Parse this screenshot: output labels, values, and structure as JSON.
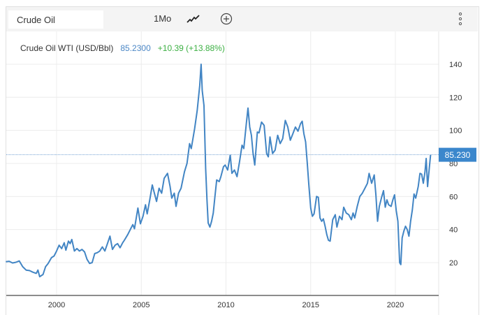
{
  "header": {
    "search_value": "Crude Oil",
    "period": "1Mo",
    "icons": [
      "line-chart-icon",
      "add-circle-icon",
      "more-vertical-icon"
    ]
  },
  "legend": {
    "name": "Crude Oil WTI (USD/Bbl)",
    "last": "85.2300",
    "change": "+10.39 (+13.88%)"
  },
  "colors": {
    "line": "#4285c4",
    "last_value": "#4a86c5",
    "change": "#3cb043",
    "badge": "#3b87cc"
  },
  "chart_data": {
    "type": "line",
    "title": "",
    "xlabel": "",
    "ylabel": "",
    "xlim": [
      1997.0,
      2022.6
    ],
    "ylim": [
      0,
      150
    ],
    "x_ticks": [
      "2000",
      "2005",
      "2010",
      "2015",
      "2020"
    ],
    "y_ticks": [
      "20",
      "40",
      "60",
      "80",
      "100",
      "120",
      "140"
    ],
    "grid": true,
    "last_value_label": "85.230",
    "last_value": 85.23,
    "series": [
      {
        "points": [
          [
            1997.0,
            20.5
          ],
          [
            1997.2,
            20.8
          ],
          [
            1997.4,
            19.8
          ],
          [
            1997.6,
            20.2
          ],
          [
            1997.8,
            21.0
          ],
          [
            1998.0,
            17.5
          ],
          [
            1998.2,
            15.5
          ],
          [
            1998.4,
            15.2
          ],
          [
            1998.6,
            14.2
          ],
          [
            1998.8,
            13.5
          ],
          [
            1998.9,
            15.5
          ],
          [
            1999.0,
            11.5
          ],
          [
            1999.2,
            12.8
          ],
          [
            1999.35,
            17.5
          ],
          [
            1999.5,
            19.5
          ],
          [
            1999.7,
            23.0
          ],
          [
            1999.85,
            24.0
          ],
          [
            2000.0,
            27.0
          ],
          [
            2000.15,
            30.5
          ],
          [
            2000.3,
            28.5
          ],
          [
            2000.45,
            32.0
          ],
          [
            2000.55,
            27.5
          ],
          [
            2000.7,
            33.0
          ],
          [
            2000.8,
            31.5
          ],
          [
            2000.9,
            34.0
          ],
          [
            2001.05,
            27.0
          ],
          [
            2001.2,
            28.5
          ],
          [
            2001.35,
            27.0
          ],
          [
            2001.5,
            28.0
          ],
          [
            2001.65,
            26.5
          ],
          [
            2001.8,
            22.0
          ],
          [
            2001.95,
            19.5
          ],
          [
            2002.1,
            20.0
          ],
          [
            2002.25,
            25.5
          ],
          [
            2002.4,
            26.0
          ],
          [
            2002.55,
            27.0
          ],
          [
            2002.7,
            29.5
          ],
          [
            2002.85,
            27.0
          ],
          [
            2003.0,
            31.5
          ],
          [
            2003.15,
            36.0
          ],
          [
            2003.3,
            28.0
          ],
          [
            2003.45,
            30.5
          ],
          [
            2003.6,
            31.5
          ],
          [
            2003.75,
            29.0
          ],
          [
            2003.9,
            32.0
          ],
          [
            2004.0,
            33.5
          ],
          [
            2004.2,
            37.0
          ],
          [
            2004.35,
            40.0
          ],
          [
            2004.5,
            43.0
          ],
          [
            2004.6,
            40.5
          ],
          [
            2004.8,
            53.0
          ],
          [
            2004.95,
            43.5
          ],
          [
            2005.1,
            48.0
          ],
          [
            2005.25,
            55.0
          ],
          [
            2005.35,
            49.5
          ],
          [
            2005.5,
            58.0
          ],
          [
            2005.65,
            67.0
          ],
          [
            2005.75,
            63.0
          ],
          [
            2005.9,
            57.0
          ],
          [
            2006.05,
            65.0
          ],
          [
            2006.2,
            62.0
          ],
          [
            2006.35,
            71.0
          ],
          [
            2006.55,
            74.0
          ],
          [
            2006.7,
            66.0
          ],
          [
            2006.8,
            59.0
          ],
          [
            2006.95,
            62.0
          ],
          [
            2007.05,
            54.0
          ],
          [
            2007.2,
            62.0
          ],
          [
            2007.35,
            65.0
          ],
          [
            2007.55,
            75.0
          ],
          [
            2007.7,
            80.0
          ],
          [
            2007.85,
            92.0
          ],
          [
            2007.95,
            89.0
          ],
          [
            2008.05,
            95.0
          ],
          [
            2008.15,
            101.0
          ],
          [
            2008.3,
            112.0
          ],
          [
            2008.45,
            127.0
          ],
          [
            2008.53,
            140.0
          ],
          [
            2008.6,
            124.0
          ],
          [
            2008.7,
            115.0
          ],
          [
            2008.8,
            77.0
          ],
          [
            2008.88,
            58.0
          ],
          [
            2008.95,
            44.0
          ],
          [
            2009.05,
            41.5
          ],
          [
            2009.15,
            45.0
          ],
          [
            2009.25,
            50.0
          ],
          [
            2009.35,
            60.0
          ],
          [
            2009.45,
            70.0
          ],
          [
            2009.6,
            69.0
          ],
          [
            2009.7,
            72.0
          ],
          [
            2009.85,
            78.0
          ],
          [
            2009.95,
            79.0
          ],
          [
            2010.1,
            76.0
          ],
          [
            2010.25,
            85.0
          ],
          [
            2010.35,
            74.0
          ],
          [
            2010.5,
            76.0
          ],
          [
            2010.65,
            72.0
          ],
          [
            2010.8,
            81.0
          ],
          [
            2010.95,
            91.0
          ],
          [
            2011.05,
            89.0
          ],
          [
            2011.2,
            104.0
          ],
          [
            2011.3,
            113.5
          ],
          [
            2011.4,
            102.0
          ],
          [
            2011.5,
            97.0
          ],
          [
            2011.6,
            86.0
          ],
          [
            2011.7,
            79.0
          ],
          [
            2011.85,
            99.0
          ],
          [
            2011.95,
            98.5
          ],
          [
            2012.1,
            105.0
          ],
          [
            2012.25,
            103.0
          ],
          [
            2012.4,
            86.0
          ],
          [
            2012.5,
            84.0
          ],
          [
            2012.6,
            96.0
          ],
          [
            2012.75,
            86.0
          ],
          [
            2012.9,
            88.0
          ],
          [
            2013.05,
            97.0
          ],
          [
            2013.2,
            92.0
          ],
          [
            2013.35,
            95.0
          ],
          [
            2013.5,
            106.0
          ],
          [
            2013.65,
            102.0
          ],
          [
            2013.8,
            94.0
          ],
          [
            2013.95,
            98.0
          ],
          [
            2014.1,
            102.0
          ],
          [
            2014.25,
            99.5
          ],
          [
            2014.4,
            104.0
          ],
          [
            2014.5,
            105.5
          ],
          [
            2014.6,
            98.0
          ],
          [
            2014.7,
            93.0
          ],
          [
            2014.8,
            80.0
          ],
          [
            2014.9,
            66.0
          ],
          [
            2015.0,
            53.0
          ],
          [
            2015.1,
            48.0
          ],
          [
            2015.2,
            49.5
          ],
          [
            2015.35,
            60.0
          ],
          [
            2015.45,
            59.5
          ],
          [
            2015.55,
            47.0
          ],
          [
            2015.65,
            45.0
          ],
          [
            2015.75,
            46.5
          ],
          [
            2015.85,
            42.0
          ],
          [
            2015.95,
            37.0
          ],
          [
            2016.05,
            33.5
          ],
          [
            2016.15,
            33.0
          ],
          [
            2016.3,
            46.0
          ],
          [
            2016.45,
            49.0
          ],
          [
            2016.55,
            41.5
          ],
          [
            2016.7,
            48.0
          ],
          [
            2016.85,
            46.0
          ],
          [
            2016.95,
            53.5
          ],
          [
            2017.1,
            50.0
          ],
          [
            2017.25,
            49.0
          ],
          [
            2017.4,
            46.0
          ],
          [
            2017.5,
            50.0
          ],
          [
            2017.6,
            47.0
          ],
          [
            2017.75,
            54.0
          ],
          [
            2017.9,
            60.0
          ],
          [
            2018.05,
            62.0
          ],
          [
            2018.2,
            65.0
          ],
          [
            2018.35,
            68.0
          ],
          [
            2018.45,
            74.0
          ],
          [
            2018.6,
            68.0
          ],
          [
            2018.75,
            73.0
          ],
          [
            2018.85,
            61.0
          ],
          [
            2018.95,
            45.0
          ],
          [
            2019.05,
            54.0
          ],
          [
            2019.2,
            60.0
          ],
          [
            2019.3,
            63.5
          ],
          [
            2019.4,
            53.5
          ],
          [
            2019.5,
            58.0
          ],
          [
            2019.6,
            55.0
          ],
          [
            2019.75,
            54.0
          ],
          [
            2019.85,
            58.0
          ],
          [
            2019.95,
            61.0
          ],
          [
            2020.05,
            51.5
          ],
          [
            2020.15,
            45.0
          ],
          [
            2020.25,
            20.0
          ],
          [
            2020.32,
            18.8
          ],
          [
            2020.4,
            35.0
          ],
          [
            2020.5,
            39.0
          ],
          [
            2020.6,
            42.0
          ],
          [
            2020.7,
            40.0
          ],
          [
            2020.8,
            36.0
          ],
          [
            2020.9,
            45.0
          ],
          [
            2021.0,
            52.0
          ],
          [
            2021.1,
            61.5
          ],
          [
            2021.2,
            59.0
          ],
          [
            2021.35,
            66.0
          ],
          [
            2021.45,
            74.0
          ],
          [
            2021.55,
            73.5
          ],
          [
            2021.65,
            68.0
          ],
          [
            2021.75,
            75.0
          ],
          [
            2021.82,
            83.0
          ],
          [
            2021.9,
            66.0
          ],
          [
            2022.0,
            77.0
          ],
          [
            2022.08,
            85.23
          ]
        ]
      }
    ]
  }
}
